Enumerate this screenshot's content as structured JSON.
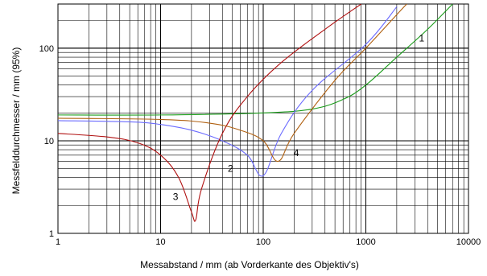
{
  "chart_data": {
    "type": "line",
    "xlabel": "Messabstand / mm (ab Vorderkante des Objektiv's)",
    "ylabel": "Messfelddurchmesser / mm (95%)",
    "xscale": "log",
    "yscale": "log",
    "xlim": [
      1,
      10000
    ],
    "ylim": [
      1,
      300
    ],
    "grid": true,
    "x_tick_labels": [
      "1",
      "10",
      "100",
      "1000",
      "10000"
    ],
    "x_tick_values": [
      1,
      10,
      100,
      1000,
      10000
    ],
    "y_tick_labels": [
      "1",
      "10",
      "100"
    ],
    "y_tick_values": [
      1,
      10,
      100
    ],
    "series": [
      {
        "label": "1",
        "color": "#1a9c1a",
        "points": [
          [
            1,
            19
          ],
          [
            10,
            19
          ],
          [
            100,
            20
          ],
          [
            300,
            22
          ],
          [
            600,
            28
          ],
          [
            1000,
            40
          ],
          [
            2000,
            80
          ],
          [
            4000,
            160
          ],
          [
            7000,
            300
          ]
        ]
      },
      {
        "label": "2",
        "color": "#6b6bff",
        "points": [
          [
            1,
            16.5
          ],
          [
            5,
            16
          ],
          [
            10,
            15
          ],
          [
            20,
            13
          ],
          [
            40,
            10
          ],
          [
            70,
            7
          ],
          [
            100,
            4.2
          ],
          [
            150,
            12
          ],
          [
            300,
            35
          ],
          [
            1000,
            110
          ],
          [
            2000,
            280
          ]
        ]
      },
      {
        "label": "3",
        "color": "#b01010",
        "points": [
          [
            1,
            12
          ],
          [
            3,
            11
          ],
          [
            6,
            9.5
          ],
          [
            10,
            7
          ],
          [
            15,
            4
          ],
          [
            20,
            1.7
          ],
          [
            22,
            1.4
          ],
          [
            25,
            3
          ],
          [
            40,
            12
          ],
          [
            70,
            30
          ],
          [
            150,
            70
          ],
          [
            400,
            160
          ],
          [
            900,
            300
          ]
        ]
      },
      {
        "label": "4",
        "color": "#b06010",
        "points": [
          [
            1,
            17.5
          ],
          [
            10,
            17
          ],
          [
            30,
            15.5
          ],
          [
            60,
            13
          ],
          [
            100,
            10
          ],
          [
            140,
            6
          ],
          [
            200,
            12
          ],
          [
            500,
            45
          ],
          [
            1000,
            100
          ],
          [
            2000,
            230
          ],
          [
            2500,
            300
          ]
        ]
      }
    ],
    "curve_labels": [
      {
        "text": "1",
        "x": 3500,
        "y": 118
      },
      {
        "text": "2",
        "x": 48,
        "y": 4.6
      },
      {
        "text": "3",
        "x": 14,
        "y": 2.3
      },
      {
        "text": "4",
        "x": 210,
        "y": 6.8
      }
    ]
  }
}
